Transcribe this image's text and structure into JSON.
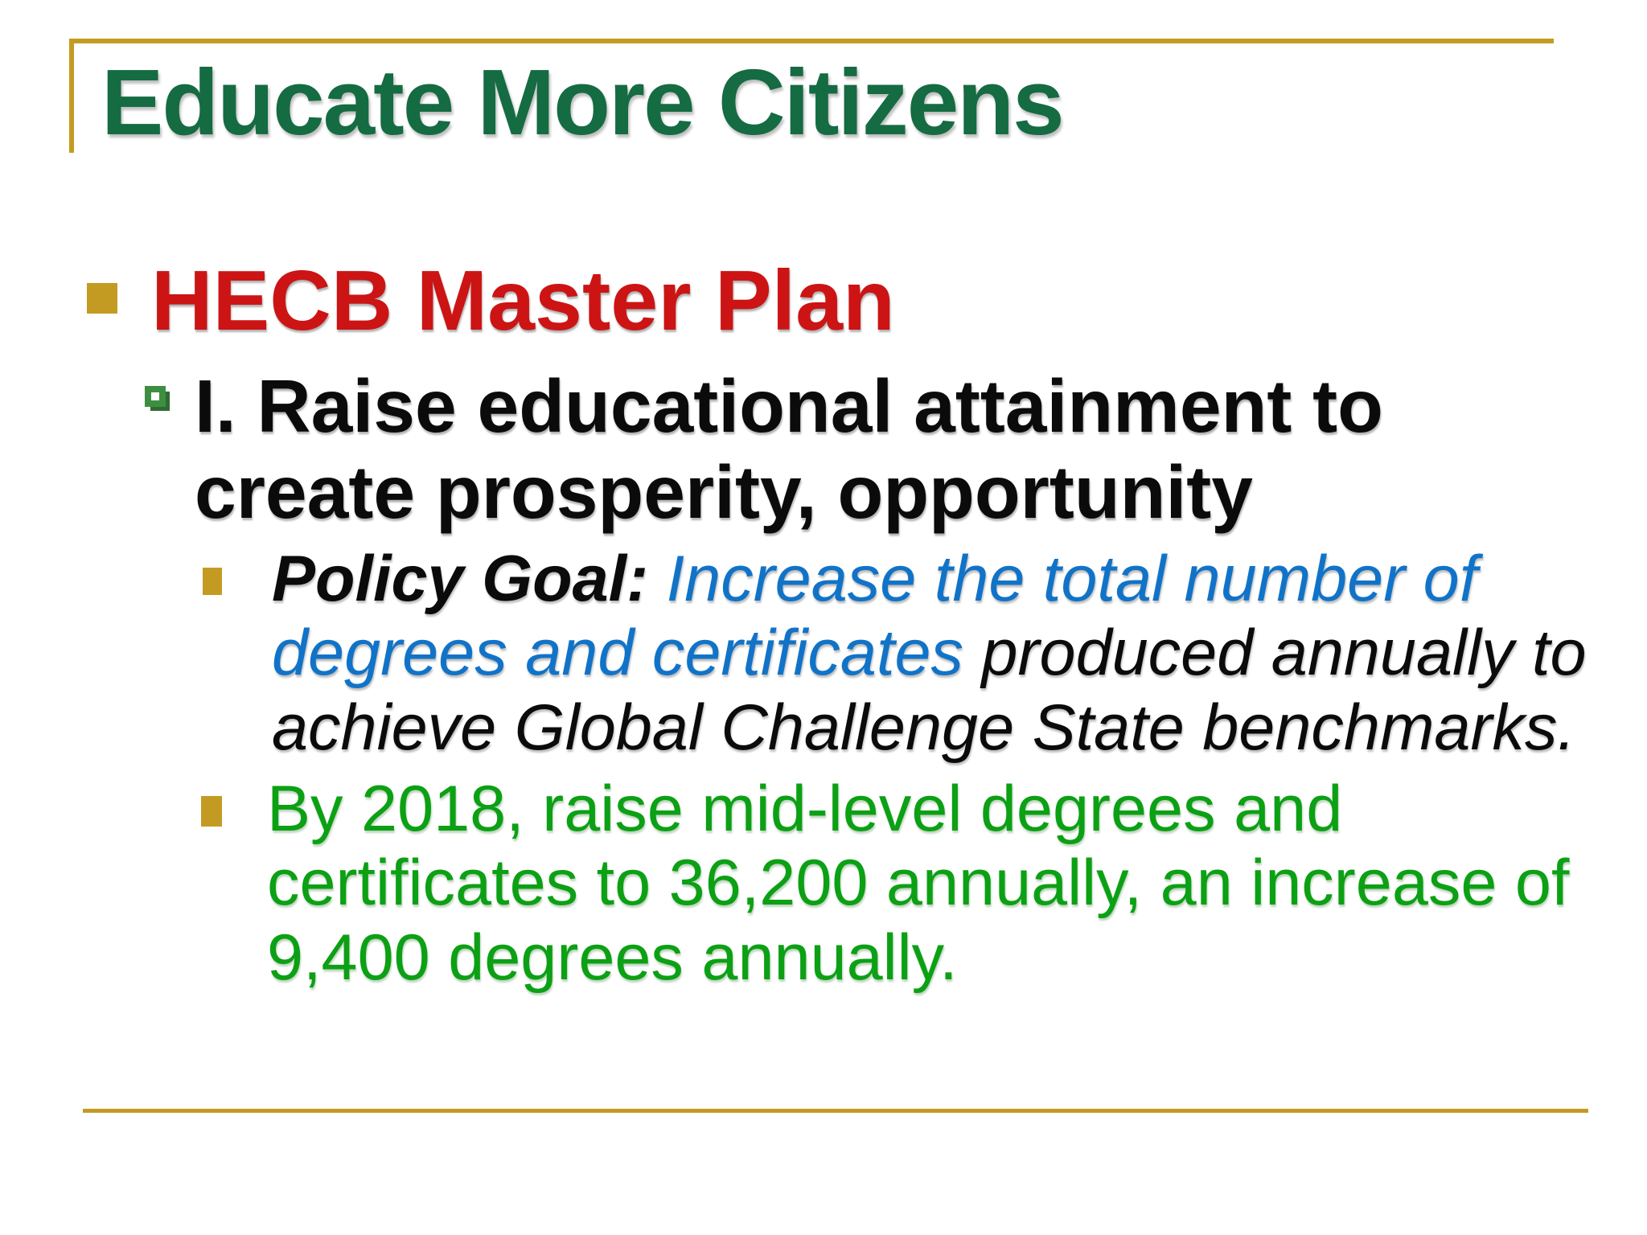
{
  "slide": {
    "title": "Educate More Citizens",
    "level1": {
      "text": "HECB Master Plan"
    },
    "level2": {
      "lines": [
        "I. Raise educational attainment to",
        "create prosperity, opportunity"
      ]
    },
    "policy": {
      "lines": [
        {
          "seg0": "Policy Goal: ",
          "seg1": "Increase the total number of"
        },
        {
          "seg0": "degrees and certificates ",
          "seg1": "produced annually to"
        },
        {
          "seg0": "achieve Global Challenge State benchmarks."
        }
      ]
    },
    "green": {
      "lines": [
        "By 2018, raise mid-level degrees and",
        "certificates to 36,200 annually, an increase of",
        "9,400 degrees annually."
      ]
    },
    "colors": {
      "gold": "#C49B22",
      "title_green": "#156B42",
      "heading_red": "#CC1414",
      "body_black": "#0b0b0b",
      "body_blue": "#1173C8",
      "body_green": "#0CA014",
      "bullet_hollow_green": "#3E8E41"
    }
  }
}
